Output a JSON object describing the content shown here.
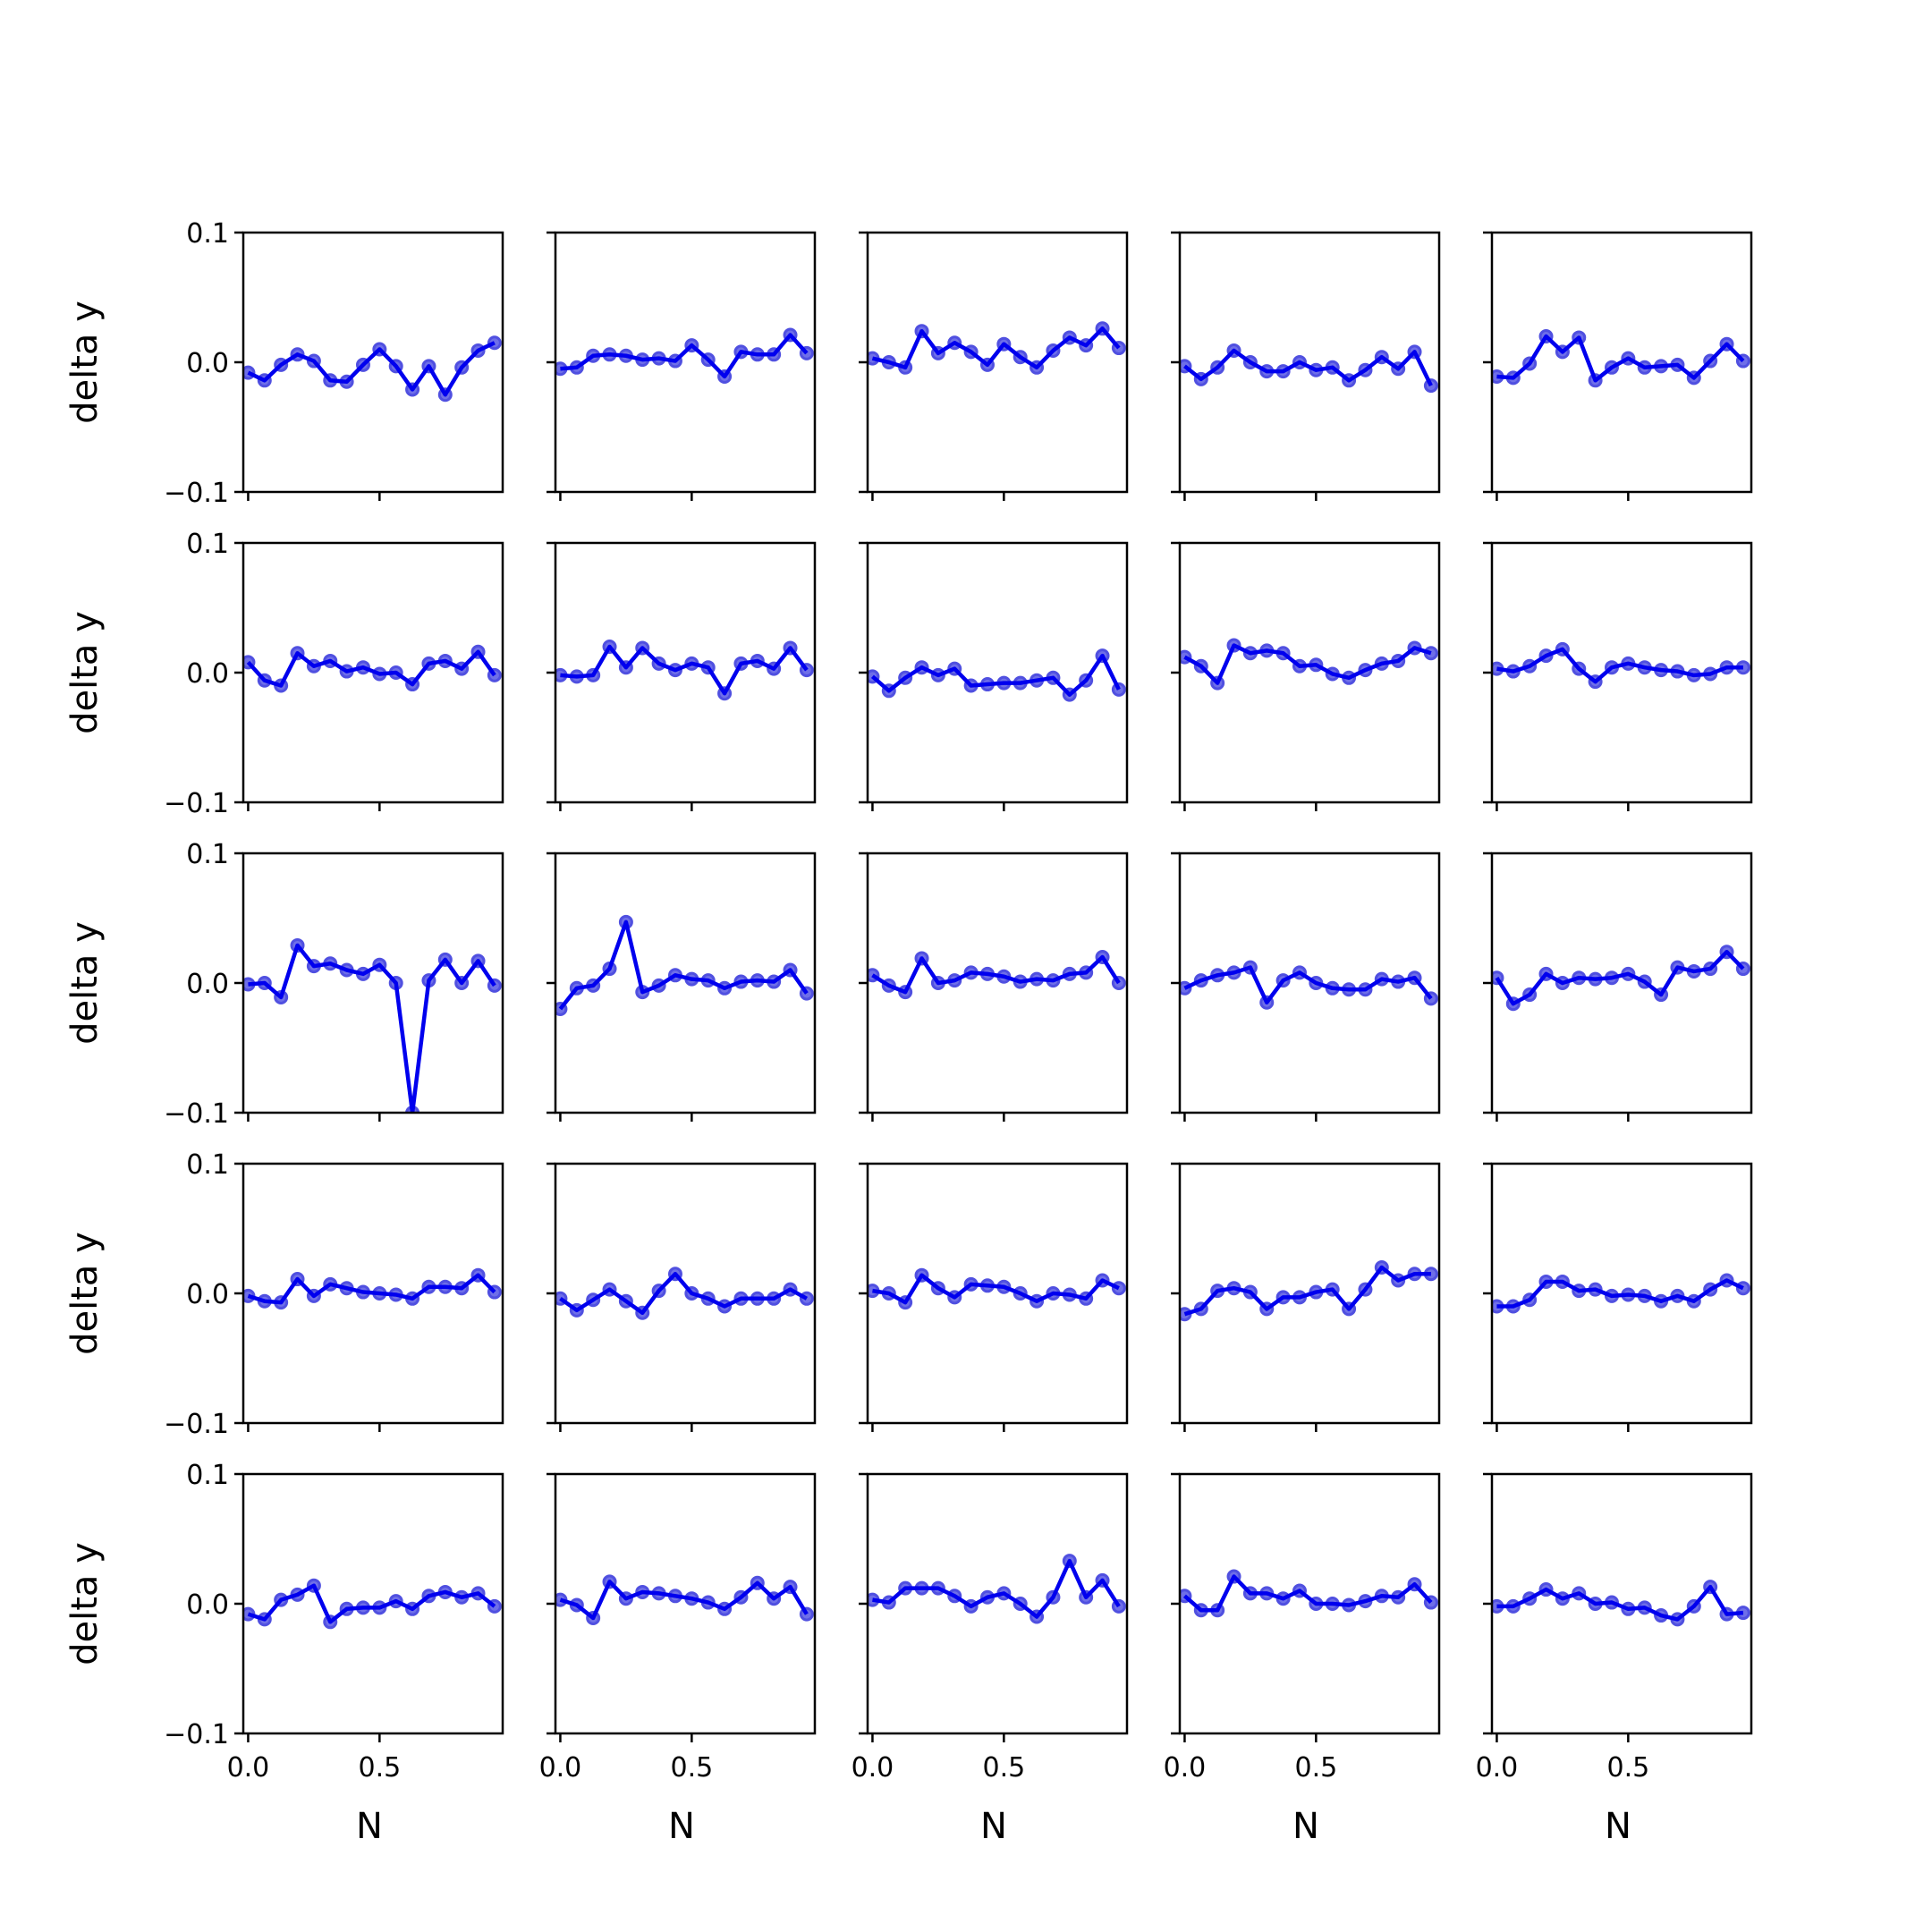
{
  "chart_data": {
    "type": "line",
    "layout": {
      "rows": 5,
      "cols": 5
    },
    "xlabel": "N",
    "ylabel": "delta y",
    "xlim": [
      -0.0185,
      0.9685
    ],
    "ylim": [
      -0.1,
      0.1
    ],
    "xticks": [
      0.0,
      0.5
    ],
    "xtick_labels": [
      "0.0",
      "0.5"
    ],
    "yticks": [
      0.1,
      0.0,
      -0.1
    ],
    "ytick_labels": [
      "0.1",
      "0.0",
      "−0.1"
    ],
    "colors": {
      "line": "#0000ee",
      "marker": "#6f6fe8"
    },
    "x": [
      0.0,
      0.0625,
      0.125,
      0.1875,
      0.25,
      0.3125,
      0.375,
      0.4375,
      0.5,
      0.5625,
      0.625,
      0.6875,
      0.75,
      0.8125,
      0.875,
      0.9375
    ],
    "panels": [
      [
        -0.008,
        -0.014,
        -0.002,
        0.006,
        0.001,
        -0.014,
        -0.015,
        -0.002,
        0.01,
        -0.003,
        -0.021,
        -0.003,
        -0.025,
        -0.004,
        0.009,
        0.015
      ],
      [
        -0.005,
        -0.004,
        0.005,
        0.006,
        0.005,
        0.002,
        0.003,
        0.001,
        0.013,
        0.002,
        -0.011,
        0.008,
        0.006,
        0.006,
        0.021,
        0.007
      ],
      [
        0.003,
        0.0,
        -0.004,
        0.024,
        0.007,
        0.015,
        0.008,
        -0.002,
        0.014,
        0.004,
        -0.004,
        0.009,
        0.019,
        0.013,
        0.026,
        0.011
      ],
      [
        -0.003,
        -0.013,
        -0.004,
        0.009,
        0.0,
        -0.007,
        -0.007,
        0.0,
        -0.006,
        -0.004,
        -0.014,
        -0.006,
        0.004,
        -0.005,
        0.008,
        -0.018
      ],
      [
        -0.011,
        -0.012,
        -0.001,
        0.02,
        0.008,
        0.019,
        -0.014,
        -0.004,
        0.003,
        -0.004,
        -0.003,
        -0.002,
        -0.012,
        0.001,
        0.014,
        0.001
      ]
    ],
    "panels_row2": [
      [
        0.008,
        -0.006,
        -0.01,
        0.015,
        0.005,
        0.009,
        0.001,
        0.004,
        -0.001,
        0.0,
        -0.009,
        0.007,
        0.009,
        0.003,
        0.016,
        -0.002
      ],
      [
        -0.002,
        -0.003,
        -0.002,
        0.02,
        0.004,
        0.019,
        0.007,
        0.002,
        0.007,
        0.004,
        -0.016,
        0.007,
        0.009,
        0.003,
        0.019,
        0.002
      ],
      [
        -0.003,
        -0.014,
        -0.004,
        0.004,
        -0.002,
        0.003,
        -0.01,
        -0.009,
        -0.008,
        -0.008,
        -0.006,
        -0.004,
        -0.017,
        -0.006,
        0.013,
        -0.013
      ],
      [
        0.012,
        0.005,
        -0.008,
        0.021,
        0.015,
        0.017,
        0.015,
        0.005,
        0.006,
        -0.001,
        -0.004,
        0.002,
        0.007,
        0.009,
        0.019,
        0.015
      ],
      [
        0.003,
        0.001,
        0.005,
        0.013,
        0.018,
        0.003,
        -0.007,
        0.004,
        0.007,
        0.004,
        0.002,
        0.001,
        -0.002,
        -0.001,
        0.004,
        0.004
      ]
    ],
    "panels_row3": [
      [
        -0.001,
        0.0,
        -0.011,
        0.029,
        0.013,
        0.015,
        0.01,
        0.007,
        0.014,
        0.0,
        -0.1,
        0.002,
        0.018,
        0.0,
        0.017,
        -0.002
      ],
      [
        -0.02,
        -0.004,
        -0.002,
        0.011,
        0.047,
        -0.007,
        -0.002,
        0.006,
        0.003,
        0.002,
        -0.004,
        0.001,
        0.002,
        0.001,
        0.01,
        -0.008
      ],
      [
        0.006,
        -0.002,
        -0.007,
        0.019,
        0.0,
        0.002,
        0.008,
        0.007,
        0.005,
        0.001,
        0.003,
        0.002,
        0.007,
        0.008,
        0.02,
        0.0
      ],
      [
        -0.004,
        0.002,
        0.006,
        0.008,
        0.012,
        -0.015,
        0.002,
        0.008,
        0.0,
        -0.004,
        -0.005,
        -0.005,
        0.003,
        0.001,
        0.004,
        -0.012
      ],
      [
        0.004,
        -0.016,
        -0.009,
        0.007,
        0.0,
        0.004,
        0.003,
        0.004,
        0.007,
        0.001,
        -0.009,
        0.012,
        0.009,
        0.011,
        0.024,
        0.011
      ]
    ],
    "panels_row4": [
      [
        -0.002,
        -0.006,
        -0.007,
        0.011,
        -0.002,
        0.007,
        0.004,
        0.001,
        0.0,
        -0.001,
        -0.004,
        0.005,
        0.005,
        0.004,
        0.014,
        0.001
      ],
      [
        -0.004,
        -0.013,
        -0.005,
        0.003,
        -0.006,
        -0.015,
        0.002,
        0.015,
        0.0,
        -0.004,
        -0.01,
        -0.004,
        -0.004,
        -0.004,
        0.003,
        -0.004
      ],
      [
        0.002,
        0.0,
        -0.007,
        0.014,
        0.004,
        -0.003,
        0.007,
        0.006,
        0.005,
        0.0,
        -0.006,
        0.0,
        -0.001,
        -0.004,
        0.01,
        0.004
      ],
      [
        -0.016,
        -0.012,
        0.002,
        0.004,
        0.001,
        -0.012,
        -0.003,
        -0.003,
        0.001,
        0.003,
        -0.012,
        0.003,
        0.02,
        0.01,
        0.015,
        0.015
      ],
      [
        -0.01,
        -0.01,
        -0.005,
        0.009,
        0.009,
        0.002,
        0.003,
        -0.002,
        -0.001,
        -0.002,
        -0.006,
        -0.002,
        -0.006,
        0.003,
        0.01,
        0.004
      ]
    ],
    "panels_row5": [
      [
        -0.008,
        -0.012,
        0.003,
        0.007,
        0.014,
        -0.014,
        -0.004,
        -0.003,
        -0.003,
        0.002,
        -0.004,
        0.006,
        0.009,
        0.005,
        0.008,
        -0.002
      ],
      [
        0.003,
        -0.001,
        -0.011,
        0.017,
        0.004,
        0.009,
        0.008,
        0.006,
        0.004,
        0.001,
        -0.004,
        0.005,
        0.016,
        0.004,
        0.013,
        -0.008
      ],
      [
        0.003,
        0.001,
        0.012,
        0.012,
        0.012,
        0.006,
        -0.002,
        0.005,
        0.008,
        0.0,
        -0.01,
        0.005,
        0.033,
        0.005,
        0.018,
        -0.002
      ],
      [
        0.006,
        -0.005,
        -0.005,
        0.021,
        0.008,
        0.008,
        0.004,
        0.01,
        0.0,
        0.0,
        -0.001,
        0.002,
        0.006,
        0.005,
        0.015,
        0.001
      ],
      [
        -0.002,
        -0.002,
        0.004,
        0.011,
        0.004,
        0.008,
        0.0,
        0.001,
        -0.004,
        -0.003,
        -0.009,
        -0.012,
        -0.002,
        0.013,
        -0.008,
        -0.007
      ]
    ]
  }
}
